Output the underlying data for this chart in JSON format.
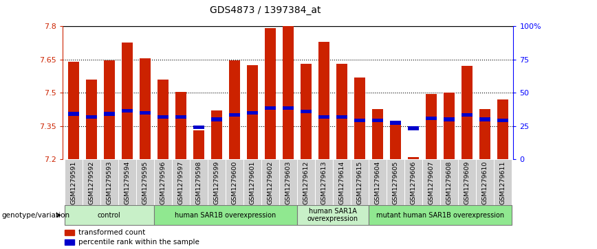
{
  "title": "GDS4873 / 1397384_at",
  "samples": [
    "GSM1279591",
    "GSM1279592",
    "GSM1279593",
    "GSM1279594",
    "GSM1279595",
    "GSM1279596",
    "GSM1279597",
    "GSM1279598",
    "GSM1279599",
    "GSM1279600",
    "GSM1279601",
    "GSM1279602",
    "GSM1279603",
    "GSM1279612",
    "GSM1279613",
    "GSM1279614",
    "GSM1279615",
    "GSM1279604",
    "GSM1279605",
    "GSM1279606",
    "GSM1279607",
    "GSM1279608",
    "GSM1279609",
    "GSM1279610",
    "GSM1279611"
  ],
  "transformed_count": [
    7.64,
    7.56,
    7.645,
    7.725,
    7.655,
    7.56,
    7.505,
    7.33,
    7.42,
    7.645,
    7.625,
    7.79,
    7.8,
    7.63,
    7.73,
    7.63,
    7.57,
    7.425,
    7.37,
    7.21,
    7.495,
    7.5,
    7.62,
    7.425,
    7.47
  ],
  "percentile_rank": [
    7.405,
    7.39,
    7.405,
    7.42,
    7.41,
    7.39,
    7.39,
    7.345,
    7.38,
    7.4,
    7.41,
    7.43,
    7.43,
    7.415,
    7.39,
    7.39,
    7.375,
    7.375,
    7.365,
    7.34,
    7.385,
    7.38,
    7.4,
    7.38,
    7.375
  ],
  "groups": [
    {
      "label": "control",
      "start": 0,
      "end": 4,
      "color": "#c8f0c8"
    },
    {
      "label": "human SAR1B overexpression",
      "start": 5,
      "end": 12,
      "color": "#90e890"
    },
    {
      "label": "human SAR1A\noverexpression",
      "start": 13,
      "end": 16,
      "color": "#c8f0c8"
    },
    {
      "label": "mutant human SAR1B overexpression",
      "start": 17,
      "end": 24,
      "color": "#90e890"
    }
  ],
  "ymin": 7.2,
  "ymax": 7.8,
  "bar_color": "#cc2200",
  "blue_color": "#0000cc",
  "right_axis_labels": [
    "0",
    "25",
    "50",
    "75",
    "100%"
  ],
  "right_axis_values": [
    7.2,
    7.35,
    7.5,
    7.65,
    7.8
  ],
  "left_axis_ticks": [
    7.2,
    7.35,
    7.5,
    7.65,
    7.8
  ],
  "dotted_lines": [
    7.35,
    7.5,
    7.65
  ],
  "bg_color": "#ffffff",
  "legend_label1": "transformed count",
  "legend_label2": "percentile rank within the sample",
  "xlabel_bottom": "genotype/variation",
  "title_fontsize": 10,
  "bar_width": 0.6
}
